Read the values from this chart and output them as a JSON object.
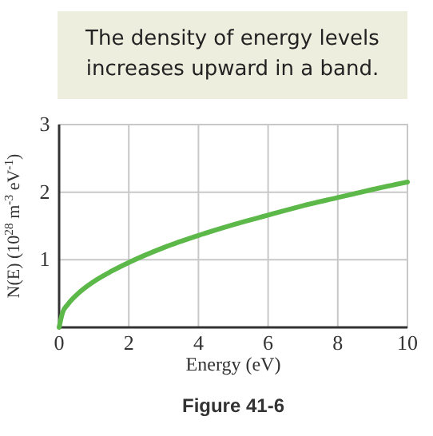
{
  "chart_data": {
    "type": "line",
    "xlabel": "Energy (eV)",
    "ylabel": "N(E) (10$^{28}$ m$^{-3}$ eV$^{-1}$)",
    "annotations": [
      "The density of energy levels increases upward in a band.",
      "Figure 41-6"
    ],
    "x": [
      0,
      0.1,
      0.25,
      0.5,
      1,
      1.5,
      2,
      3,
      4,
      5,
      6,
      7,
      8,
      9,
      10
    ],
    "series": [
      {
        "color": "#5cb848",
        "values": [
          0,
          0.22,
          0.34,
          0.48,
          0.68,
          0.83,
          0.96,
          1.18,
          1.36,
          1.52,
          1.66,
          1.8,
          1.92,
          2.04,
          2.15
        ]
      }
    ],
    "xlim": [
      0,
      10
    ],
    "xticks": [
      0,
      2,
      4,
      6,
      8,
      10
    ],
    "ylim": [
      0,
      3
    ],
    "yticks": [
      {
        "value": 0,
        "label": null
      },
      1,
      2,
      3
    ],
    "grid": true,
    "marker": "none",
    "line_style": "solid"
  }
}
